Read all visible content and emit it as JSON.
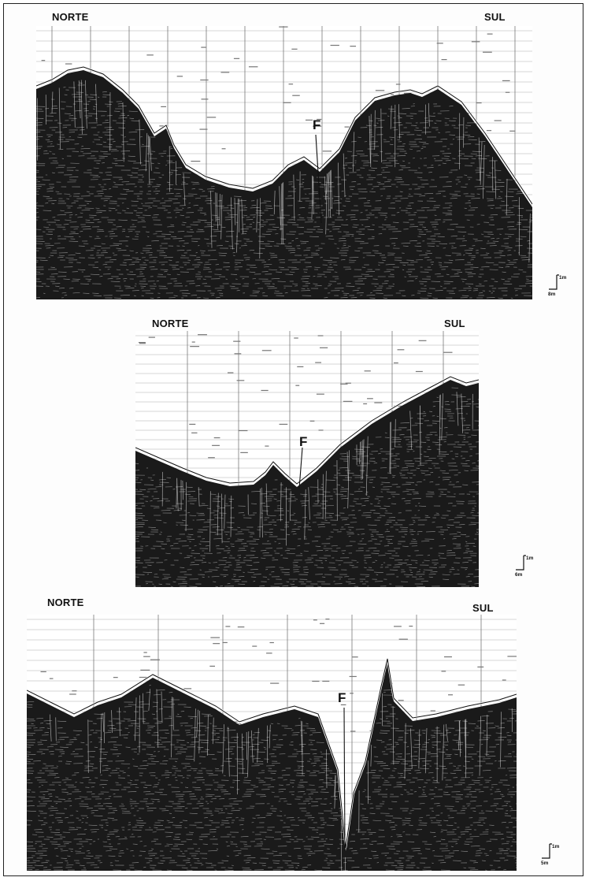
{
  "profiles": [
    {
      "left_label": "NORTE",
      "right_label": "SUL",
      "fault_label": "F",
      "scale": {
        "vertical": "1m",
        "horizontal": "8m"
      }
    },
    {
      "left_label": "NORTE",
      "right_label": "SUL",
      "fault_label": "F",
      "scale": {
        "vertical": "1m",
        "horizontal": "6m"
      }
    },
    {
      "left_label": "NORTE",
      "right_label": "SUL",
      "fault_label": "F",
      "scale": {
        "vertical": "1m",
        "horizontal": "5m"
      }
    }
  ]
}
